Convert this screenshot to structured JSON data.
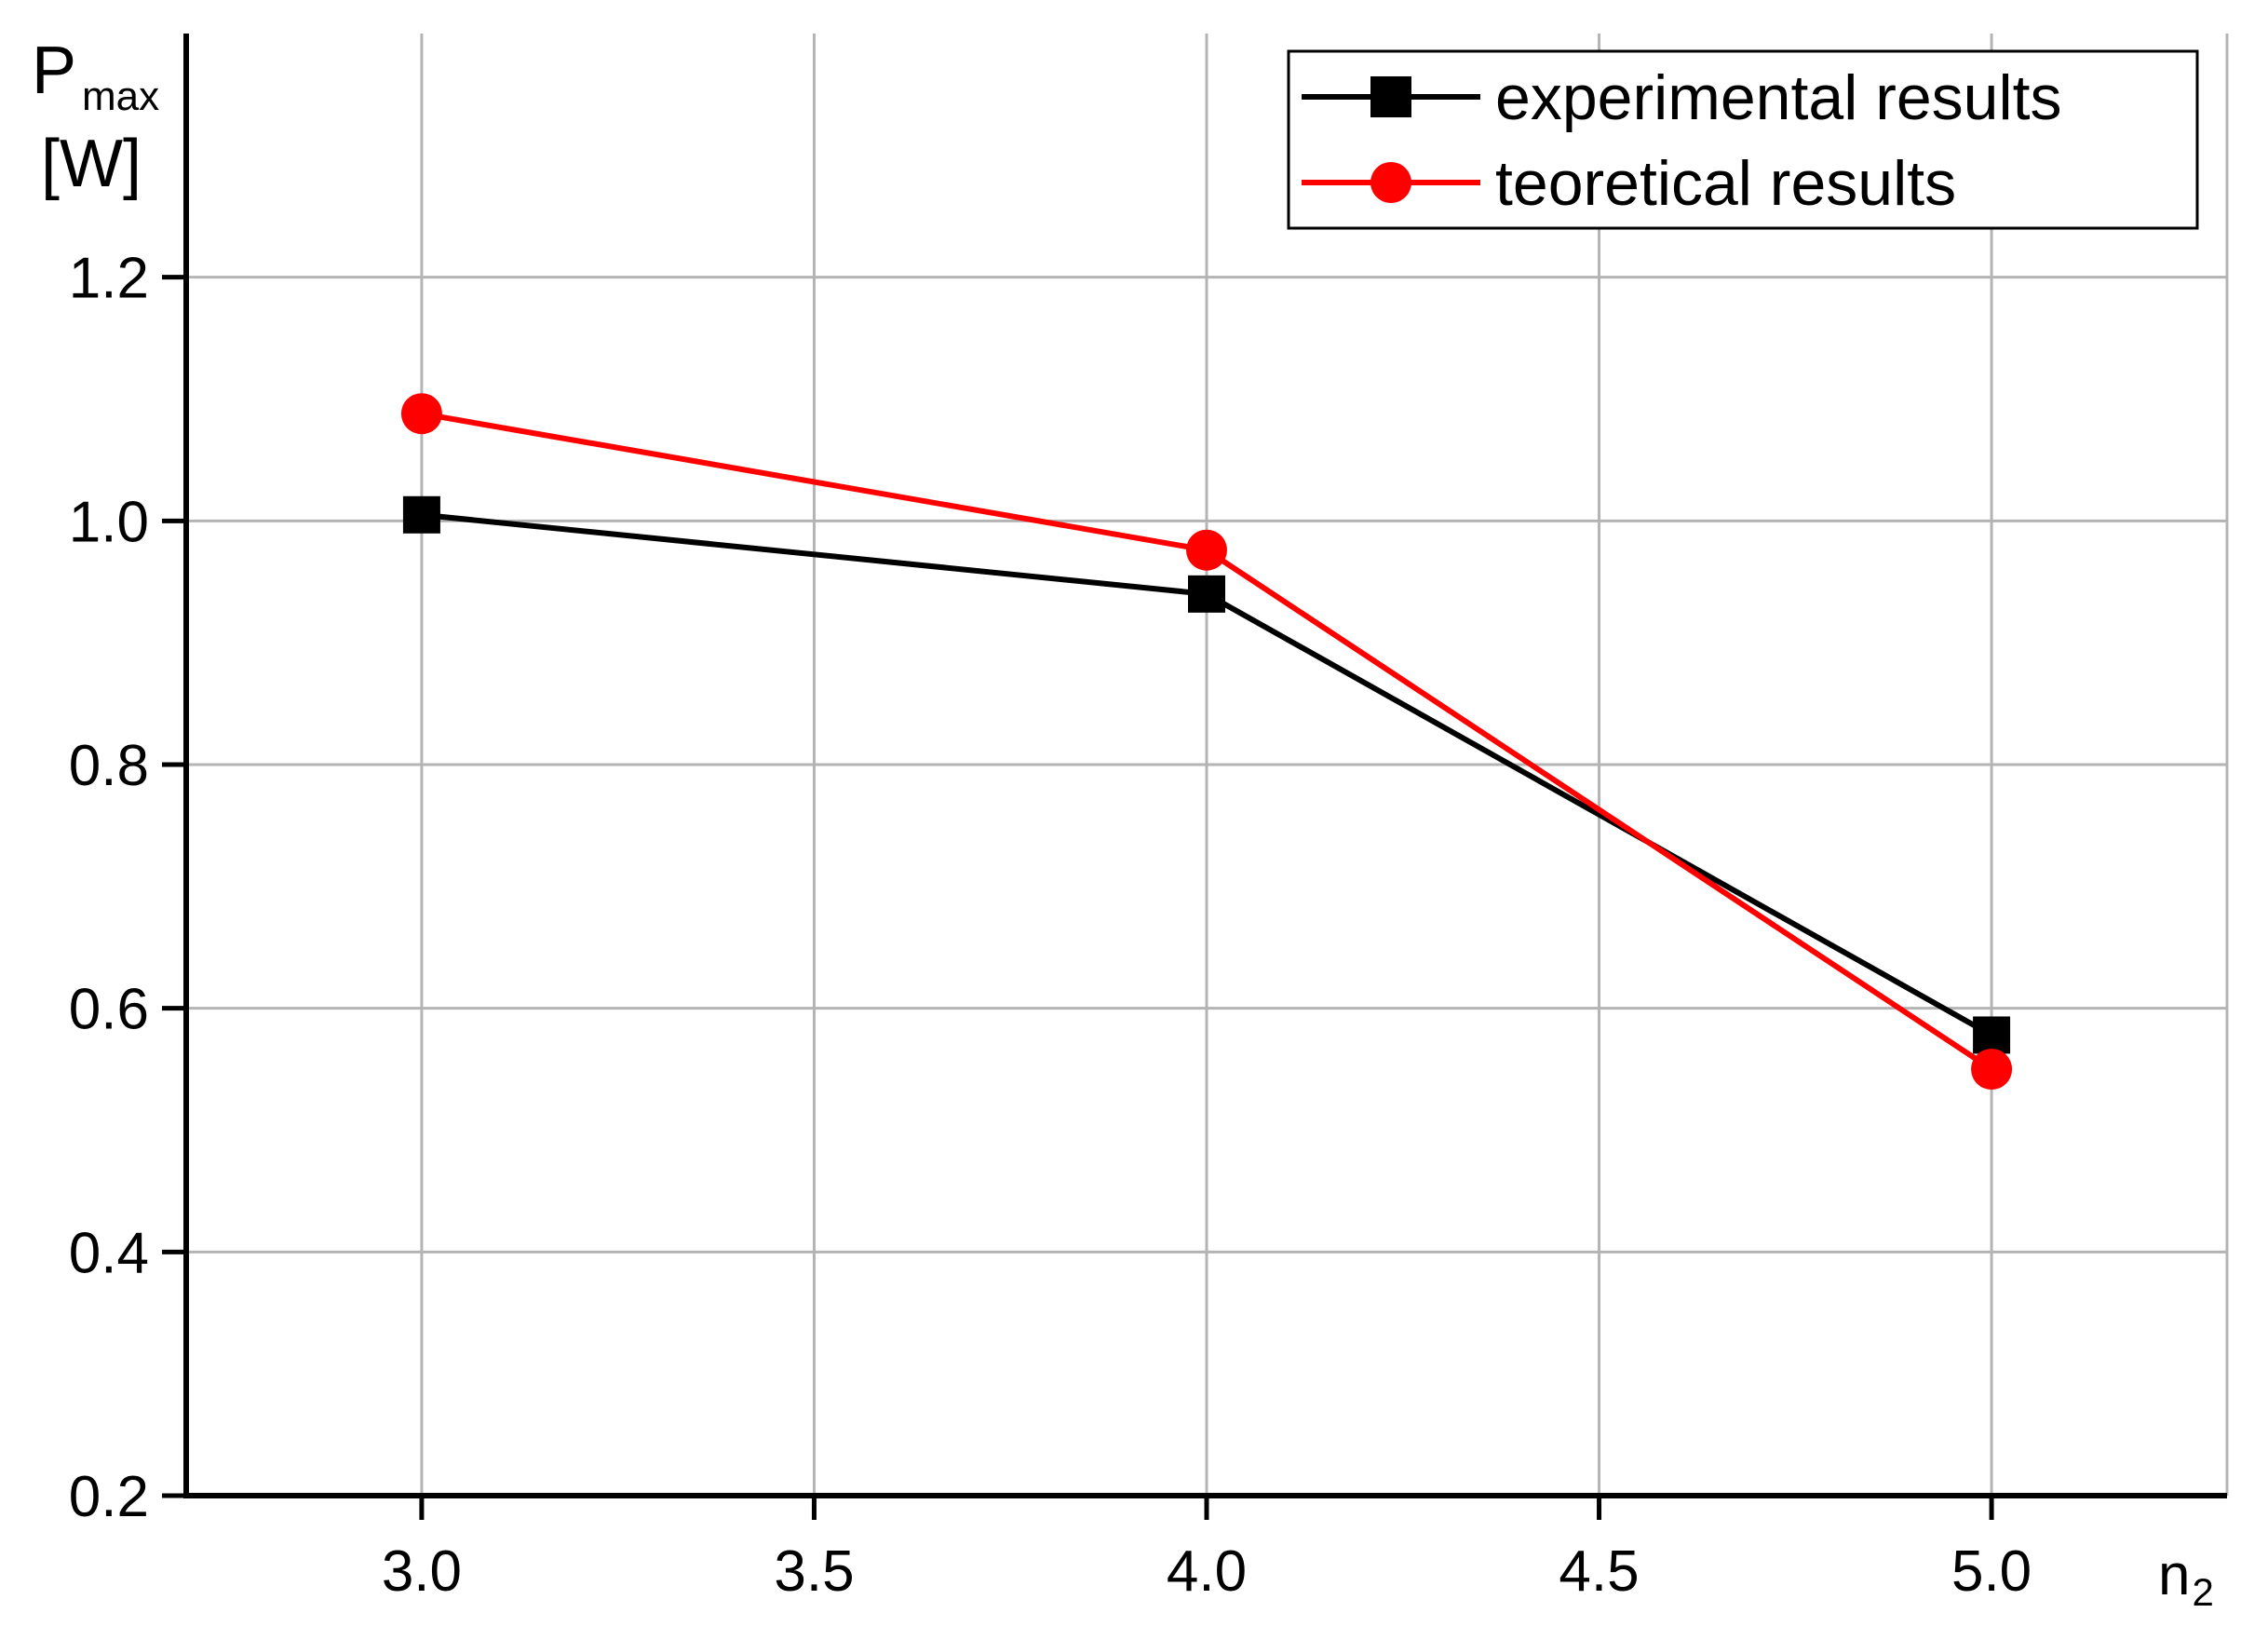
{
  "chart_data": {
    "type": "line",
    "x": [
      3.0,
      4.0,
      5.0
    ],
    "series": [
      {
        "name": "experimental results",
        "values": [
          1.005,
          0.94,
          0.578
        ],
        "color": "#000000",
        "marker": "square"
      },
      {
        "name": "teoretical results",
        "values": [
          1.088,
          0.976,
          0.55
        ],
        "color": "#ff0000",
        "marker": "circle"
      }
    ],
    "xlim": [
      2.7,
      5.3
    ],
    "ylim": [
      0.2,
      1.4
    ],
    "xticks": [
      3.0,
      3.5,
      4.0,
      4.5,
      5.0
    ],
    "xtick_labels": [
      "3.0",
      "3.5",
      "4.0",
      "4.5",
      "5.0"
    ],
    "yticks": [
      0.2,
      0.4,
      0.6,
      0.8,
      1.0,
      1.2
    ],
    "ytick_labels": [
      "0.2",
      "0.4",
      "0.6",
      "0.8",
      "1.0",
      "1.2"
    ],
    "ylabel": {
      "main": "P",
      "sub": "max",
      "unit": "[W]"
    },
    "xlabel": {
      "main": "n",
      "sub": "2"
    },
    "grid": true,
    "legend_position": "top-right",
    "grid_color": "#b4b4b4"
  }
}
